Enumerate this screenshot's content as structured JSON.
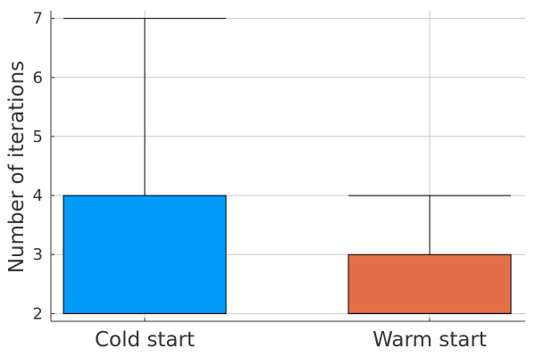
{
  "chart_data": {
    "type": "box",
    "ylabel": "Number of iterations",
    "xlabel": "",
    "ylim": [
      1.87,
      7.13
    ],
    "yticks": [
      2,
      3,
      4,
      5,
      6,
      7
    ],
    "grid": true,
    "legend": "none",
    "categories": [
      "Cold start",
      "Warm start"
    ],
    "boxes": [
      {
        "category": "Cold start",
        "whisker_low": 2,
        "q1": 2,
        "median": 2,
        "q3": 4,
        "whisker_high": 7,
        "color": "#009af9"
      },
      {
        "category": "Warm start",
        "whisker_low": 2,
        "q1": 2,
        "median": 2,
        "q3": 3,
        "whisker_high": 4,
        "color": "#e26f46"
      }
    ]
  }
}
